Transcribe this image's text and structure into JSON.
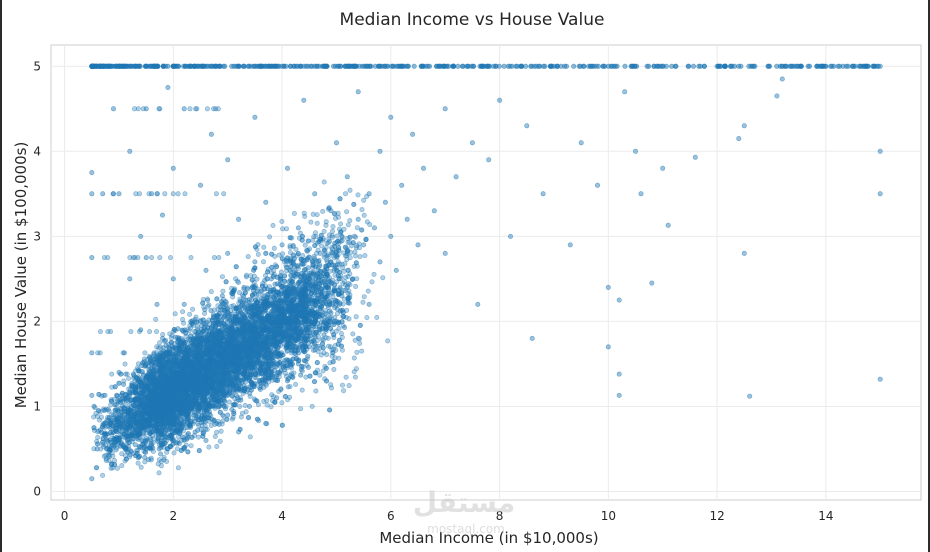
{
  "chart_data": {
    "type": "scatter",
    "title": "Median Income vs House Value",
    "xlabel": "Median Income (in $10,000s)",
    "ylabel": "Median House Value (in $100,000s)",
    "xlim": [
      -0.25,
      15.75
    ],
    "ylim": [
      -0.1,
      5.25
    ],
    "xticks": [
      0,
      2,
      4,
      6,
      8,
      10,
      12,
      14
    ],
    "yticks": [
      0,
      1,
      2,
      3,
      4,
      5
    ],
    "grid": true,
    "legend": "none",
    "marker_color": "#1f77b4",
    "marker_alpha": 0.35,
    "series": [
      {
        "points": [
          [
            0.5,
            0.15
          ],
          [
            0.5,
            1.13
          ],
          [
            0.5,
            1.63
          ],
          [
            0.5,
            2.75
          ],
          [
            0.5,
            3.5
          ],
          [
            0.5,
            3.75
          ],
          [
            0.5,
            5.0
          ],
          [
            0.54,
            1.0
          ],
          [
            0.6,
            0.5
          ],
          [
            0.7,
            3.5
          ],
          [
            0.8,
            5.0
          ],
          [
            0.9,
            3.5
          ],
          [
            0.9,
            4.5
          ],
          [
            1.0,
            0.6
          ],
          [
            1.0,
            1.4
          ],
          [
            1.0,
            3.5
          ],
          [
            1.1,
            0.8
          ],
          [
            1.1,
            1.63
          ],
          [
            1.2,
            2.5
          ],
          [
            1.2,
            4.0
          ],
          [
            1.2,
            5.0
          ],
          [
            1.3,
            0.55
          ],
          [
            1.3,
            1.2
          ],
          [
            1.3,
            5.0
          ],
          [
            1.4,
            1.9
          ],
          [
            1.4,
            3.0
          ],
          [
            1.5,
            0.5
          ],
          [
            1.5,
            1.0
          ],
          [
            1.5,
            2.75
          ],
          [
            1.5,
            4.5
          ],
          [
            1.6,
            0.7
          ],
          [
            1.6,
            1.5
          ],
          [
            1.6,
            3.5
          ],
          [
            1.7,
            2.2
          ],
          [
            1.7,
            5.0
          ],
          [
            1.8,
            0.55
          ],
          [
            1.8,
            1.1
          ],
          [
            1.8,
            1.8
          ],
          [
            1.8,
            3.25
          ],
          [
            1.9,
            4.75
          ],
          [
            2.0,
            0.6
          ],
          [
            2.0,
            1.3
          ],
          [
            2.0,
            2.5
          ],
          [
            2.0,
            3.8
          ],
          [
            2.0,
            5.0
          ],
          [
            2.1,
            0.9
          ],
          [
            2.1,
            1.7
          ],
          [
            2.2,
            0.5
          ],
          [
            2.2,
            2.2
          ],
          [
            2.2,
            4.5
          ],
          [
            2.3,
            1.2
          ],
          [
            2.3,
            3.0
          ],
          [
            2.4,
            0.7
          ],
          [
            2.4,
            1.6
          ],
          [
            2.4,
            5.0
          ],
          [
            2.5,
            1.0
          ],
          [
            2.5,
            2.0
          ],
          [
            2.5,
            3.6
          ],
          [
            2.6,
            0.6
          ],
          [
            2.6,
            1.4
          ],
          [
            2.6,
            2.6
          ],
          [
            2.7,
            1.1
          ],
          [
            2.7,
            4.2
          ],
          [
            2.8,
            0.8
          ],
          [
            2.8,
            1.8
          ],
          [
            2.8,
            5.0
          ],
          [
            2.9,
            1.3
          ],
          [
            2.9,
            2.3
          ],
          [
            3.0,
            0.9
          ],
          [
            3.0,
            1.5
          ],
          [
            3.0,
            2.8
          ],
          [
            3.0,
            3.9
          ],
          [
            3.1,
            1.2
          ],
          [
            3.1,
            2.0
          ],
          [
            3.2,
            0.7
          ],
          [
            3.2,
            1.6
          ],
          [
            3.2,
            3.2
          ],
          [
            3.3,
            1.4
          ],
          [
            3.3,
            2.4
          ],
          [
            3.3,
            5.0
          ],
          [
            3.4,
            1.0
          ],
          [
            3.4,
            1.9
          ],
          [
            3.5,
            1.5
          ],
          [
            3.5,
            2.7
          ],
          [
            3.5,
            4.4
          ],
          [
            3.6,
            1.2
          ],
          [
            3.6,
            2.1
          ],
          [
            3.7,
            0.8
          ],
          [
            3.7,
            1.7
          ],
          [
            3.7,
            3.4
          ],
          [
            3.8,
            1.4
          ],
          [
            3.8,
            2.5
          ],
          [
            3.9,
            1.1
          ],
          [
            3.9,
            2.0
          ],
          [
            3.9,
            5.0
          ],
          [
            4.0,
            1.6
          ],
          [
            4.0,
            2.9
          ],
          [
            4.1,
            1.3
          ],
          [
            4.1,
            2.3
          ],
          [
            4.1,
            3.8
          ],
          [
            4.2,
            1.8
          ],
          [
            4.2,
            2.7
          ],
          [
            4.3,
            1.5
          ],
          [
            4.3,
            3.1
          ],
          [
            4.4,
            2.0
          ],
          [
            4.4,
            4.6
          ],
          [
            4.5,
            1.7
          ],
          [
            4.5,
            2.5
          ],
          [
            4.6,
            2.2
          ],
          [
            4.6,
            3.5
          ],
          [
            4.7,
            1.9
          ],
          [
            4.7,
            2.8
          ],
          [
            4.8,
            2.4
          ],
          [
            4.8,
            5.0
          ],
          [
            4.9,
            2.1
          ],
          [
            4.9,
            3.3
          ],
          [
            5.0,
            2.6
          ],
          [
            5.0,
            4.1
          ],
          [
            5.1,
            2.3
          ],
          [
            5.1,
            3.0
          ],
          [
            5.2,
            2.8
          ],
          [
            5.2,
            3.7
          ],
          [
            5.3,
            2.5
          ],
          [
            5.4,
            3.2
          ],
          [
            5.4,
            4.7
          ],
          [
            5.5,
            2.9
          ],
          [
            5.6,
            3.5
          ],
          [
            5.6,
            2.2
          ],
          [
            5.7,
            3.1
          ],
          [
            5.8,
            4.0
          ],
          [
            5.8,
            2.7
          ],
          [
            5.9,
            3.4
          ],
          [
            6.0,
            3.0
          ],
          [
            6.0,
            4.4
          ],
          [
            6.1,
            2.6
          ],
          [
            6.2,
            3.6
          ],
          [
            6.3,
            3.2
          ],
          [
            6.4,
            4.2
          ],
          [
            6.5,
            2.9
          ],
          [
            6.6,
            3.8
          ],
          [
            6.8,
            3.3
          ],
          [
            7.0,
            4.5
          ],
          [
            7.0,
            2.8
          ],
          [
            7.2,
            3.7
          ],
          [
            7.5,
            4.1
          ],
          [
            7.6,
            2.2
          ],
          [
            7.8,
            3.9
          ],
          [
            8.0,
            4.6
          ],
          [
            8.2,
            3.0
          ],
          [
            8.5,
            4.3
          ],
          [
            8.6,
            1.8
          ],
          [
            8.8,
            3.5
          ],
          [
            9.0,
            5.0
          ],
          [
            9.3,
            2.9
          ],
          [
            9.5,
            4.1
          ],
          [
            9.8,
            3.6
          ],
          [
            10.0,
            2.4
          ],
          [
            10.0,
            1.7
          ],
          [
            10.2,
            2.25
          ],
          [
            10.2,
            1.38
          ],
          [
            10.2,
            1.13
          ],
          [
            10.3,
            4.7
          ],
          [
            10.5,
            4.0
          ],
          [
            10.6,
            3.5
          ],
          [
            10.8,
            2.45
          ],
          [
            11.0,
            3.8
          ],
          [
            11.0,
            5.0
          ],
          [
            11.1,
            3.13
          ],
          [
            11.6,
            3.93
          ],
          [
            12.0,
            5.0
          ],
          [
            12.4,
            4.15
          ],
          [
            12.5,
            4.3
          ],
          [
            12.5,
            2.8
          ],
          [
            12.6,
            1.12
          ],
          [
            13.1,
            4.65
          ],
          [
            13.2,
            4.85
          ],
          [
            13.5,
            5.0
          ],
          [
            14.0,
            5.0
          ],
          [
            14.5,
            5.0
          ],
          [
            15.0,
            5.0
          ],
          [
            15.0,
            4.0
          ],
          [
            15.0,
            3.5
          ],
          [
            15.0,
            1.32
          ]
        ]
      }
    ],
    "cap_line": {
      "y": 5.0,
      "x_range": [
        0.5,
        15.0
      ]
    }
  },
  "watermark": {
    "brand": "مستقل",
    "domain": "mostaql.com"
  }
}
